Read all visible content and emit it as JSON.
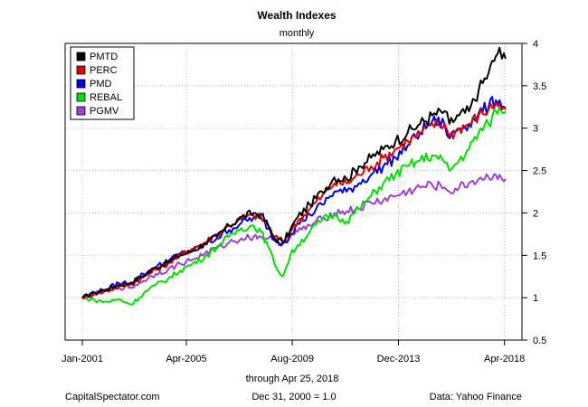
{
  "chart_data": {
    "type": "line",
    "title": "Wealth Indexes",
    "subtitle": "monthly",
    "xlabel": "through Apr 25, 2018",
    "x_range": [
      2001.0,
      2018.3
    ],
    "ylim": [
      0.5,
      4
    ],
    "y_ticks": [
      "0.5",
      "1",
      "1.5",
      "2",
      "2.5",
      "3",
      "3.5",
      "4"
    ],
    "x_ticks": [
      {
        "label": "Jan-2001",
        "x": 2001.0
      },
      {
        "label": "Apr-2005",
        "x": 2005.25
      },
      {
        "label": "Aug-2009",
        "x": 2009.58
      },
      {
        "label": "Dec-2013",
        "x": 2013.92
      },
      {
        "label": "Apr-2018",
        "x": 2018.25
      }
    ],
    "grid": true,
    "legend_position": "top-left",
    "series": [
      {
        "name": "PMTD",
        "color": "#000000",
        "points": [
          [
            2001.0,
            1.0
          ],
          [
            2001.5,
            1.06
          ],
          [
            2002.0,
            1.1
          ],
          [
            2002.5,
            1.15
          ],
          [
            2003.0,
            1.18
          ],
          [
            2003.5,
            1.26
          ],
          [
            2004.0,
            1.36
          ],
          [
            2004.5,
            1.42
          ],
          [
            2005.0,
            1.5
          ],
          [
            2005.5,
            1.55
          ],
          [
            2006.0,
            1.64
          ],
          [
            2006.5,
            1.72
          ],
          [
            2007.0,
            1.85
          ],
          [
            2007.5,
            1.95
          ],
          [
            2008.0,
            2.0
          ],
          [
            2008.3,
            1.98
          ],
          [
            2008.6,
            1.85
          ],
          [
            2008.85,
            1.7
          ],
          [
            2009.2,
            1.65
          ],
          [
            2009.5,
            1.8
          ],
          [
            2009.8,
            1.95
          ],
          [
            2010.3,
            2.1
          ],
          [
            2010.8,
            2.25
          ],
          [
            2011.3,
            2.42
          ],
          [
            2011.8,
            2.4
          ],
          [
            2012.3,
            2.55
          ],
          [
            2012.8,
            2.65
          ],
          [
            2013.3,
            2.75
          ],
          [
            2013.8,
            2.85
          ],
          [
            2014.3,
            2.95
          ],
          [
            2014.8,
            3.05
          ],
          [
            2015.3,
            3.15
          ],
          [
            2015.8,
            3.2
          ],
          [
            2016.0,
            3.05
          ],
          [
            2016.4,
            3.15
          ],
          [
            2016.8,
            3.2
          ],
          [
            2017.2,
            3.45
          ],
          [
            2017.6,
            3.65
          ],
          [
            2017.9,
            3.85
          ],
          [
            2018.05,
            3.95
          ],
          [
            2018.15,
            3.82
          ],
          [
            2018.3,
            3.82
          ]
        ]
      },
      {
        "name": "PERC",
        "color": "#e00000",
        "points": [
          [
            2001.0,
            1.0
          ],
          [
            2001.5,
            1.05
          ],
          [
            2002.0,
            1.08
          ],
          [
            2002.5,
            1.13
          ],
          [
            2003.0,
            1.16
          ],
          [
            2003.5,
            1.24
          ],
          [
            2004.0,
            1.33
          ],
          [
            2004.5,
            1.4
          ],
          [
            2005.0,
            1.5
          ],
          [
            2005.5,
            1.58
          ],
          [
            2006.0,
            1.65
          ],
          [
            2006.5,
            1.75
          ],
          [
            2007.0,
            1.85
          ],
          [
            2007.5,
            1.93
          ],
          [
            2008.0,
            1.97
          ],
          [
            2008.3,
            1.95
          ],
          [
            2008.6,
            1.85
          ],
          [
            2008.85,
            1.72
          ],
          [
            2009.2,
            1.66
          ],
          [
            2009.5,
            1.78
          ],
          [
            2009.8,
            1.9
          ],
          [
            2010.3,
            2.05
          ],
          [
            2010.8,
            2.2
          ],
          [
            2011.3,
            2.35
          ],
          [
            2011.8,
            2.35
          ],
          [
            2012.3,
            2.45
          ],
          [
            2012.8,
            2.55
          ],
          [
            2013.3,
            2.65
          ],
          [
            2013.8,
            2.75
          ],
          [
            2014.3,
            2.85
          ],
          [
            2014.8,
            2.93
          ],
          [
            2015.3,
            3.05
          ],
          [
            2015.8,
            3.05
          ],
          [
            2016.0,
            2.9
          ],
          [
            2016.4,
            3.0
          ],
          [
            2016.8,
            3.05
          ],
          [
            2017.2,
            3.15
          ],
          [
            2017.6,
            3.22
          ],
          [
            2017.9,
            3.3
          ],
          [
            2018.05,
            3.28
          ],
          [
            2018.15,
            3.22
          ],
          [
            2018.3,
            3.22
          ]
        ]
      },
      {
        "name": "PMD",
        "color": "#0000e0",
        "points": [
          [
            2001.0,
            1.0
          ],
          [
            2001.5,
            1.06
          ],
          [
            2002.0,
            1.1
          ],
          [
            2002.5,
            1.17
          ],
          [
            2003.0,
            1.18
          ],
          [
            2003.5,
            1.28
          ],
          [
            2004.0,
            1.36
          ],
          [
            2004.5,
            1.43
          ],
          [
            2005.0,
            1.52
          ],
          [
            2005.5,
            1.55
          ],
          [
            2006.0,
            1.63
          ],
          [
            2006.5,
            1.7
          ],
          [
            2007.0,
            1.8
          ],
          [
            2007.5,
            1.88
          ],
          [
            2008.0,
            1.95
          ],
          [
            2008.3,
            1.93
          ],
          [
            2008.6,
            1.82
          ],
          [
            2008.85,
            1.68
          ],
          [
            2009.2,
            1.64
          ],
          [
            2009.5,
            1.75
          ],
          [
            2009.8,
            1.87
          ],
          [
            2010.3,
            1.98
          ],
          [
            2010.8,
            2.1
          ],
          [
            2011.3,
            2.25
          ],
          [
            2011.8,
            2.25
          ],
          [
            2012.3,
            2.35
          ],
          [
            2012.8,
            2.45
          ],
          [
            2013.3,
            2.55
          ],
          [
            2013.8,
            2.65
          ],
          [
            2014.3,
            2.8
          ],
          [
            2014.8,
            2.95
          ],
          [
            2015.3,
            3.08
          ],
          [
            2015.8,
            3.05
          ],
          [
            2016.0,
            2.88
          ],
          [
            2016.4,
            3.0
          ],
          [
            2016.8,
            3.05
          ],
          [
            2017.2,
            3.18
          ],
          [
            2017.6,
            3.25
          ],
          [
            2017.9,
            3.33
          ],
          [
            2018.05,
            3.33
          ],
          [
            2018.15,
            3.25
          ],
          [
            2018.3,
            3.24
          ]
        ]
      },
      {
        "name": "REBAL",
        "color": "#00e000",
        "points": [
          [
            2001.0,
            1.0
          ],
          [
            2001.5,
            0.97
          ],
          [
            2002.0,
            0.95
          ],
          [
            2002.5,
            0.98
          ],
          [
            2003.0,
            0.92
          ],
          [
            2003.5,
            1.05
          ],
          [
            2004.0,
            1.15
          ],
          [
            2004.5,
            1.22
          ],
          [
            2005.0,
            1.32
          ],
          [
            2005.5,
            1.4
          ],
          [
            2006.0,
            1.48
          ],
          [
            2006.5,
            1.6
          ],
          [
            2007.0,
            1.72
          ],
          [
            2007.5,
            1.82
          ],
          [
            2008.0,
            1.85
          ],
          [
            2008.3,
            1.78
          ],
          [
            2008.6,
            1.6
          ],
          [
            2008.85,
            1.4
          ],
          [
            2009.2,
            1.25
          ],
          [
            2009.5,
            1.5
          ],
          [
            2009.8,
            1.62
          ],
          [
            2010.3,
            1.78
          ],
          [
            2010.8,
            1.92
          ],
          [
            2011.3,
            1.98
          ],
          [
            2011.8,
            1.9
          ],
          [
            2012.3,
            2.05
          ],
          [
            2012.8,
            2.2
          ],
          [
            2013.3,
            2.35
          ],
          [
            2013.8,
            2.45
          ],
          [
            2014.3,
            2.55
          ],
          [
            2014.8,
            2.62
          ],
          [
            2015.3,
            2.68
          ],
          [
            2015.8,
            2.6
          ],
          [
            2016.0,
            2.5
          ],
          [
            2016.4,
            2.62
          ],
          [
            2016.8,
            2.75
          ],
          [
            2017.2,
            2.95
          ],
          [
            2017.6,
            3.05
          ],
          [
            2017.9,
            3.2
          ],
          [
            2018.05,
            3.25
          ],
          [
            2018.15,
            3.18
          ],
          [
            2018.3,
            3.2
          ]
        ]
      },
      {
        "name": "PGMV",
        "color": "#a040d0",
        "points": [
          [
            2001.0,
            1.0
          ],
          [
            2001.5,
            1.04
          ],
          [
            2002.0,
            1.08
          ],
          [
            2002.5,
            1.12
          ],
          [
            2003.0,
            1.12
          ],
          [
            2003.5,
            1.2
          ],
          [
            2004.0,
            1.28
          ],
          [
            2004.5,
            1.33
          ],
          [
            2005.0,
            1.4
          ],
          [
            2005.5,
            1.45
          ],
          [
            2006.0,
            1.52
          ],
          [
            2006.5,
            1.58
          ],
          [
            2007.0,
            1.65
          ],
          [
            2007.5,
            1.7
          ],
          [
            2008.0,
            1.72
          ],
          [
            2008.3,
            1.72
          ],
          [
            2008.6,
            1.7
          ],
          [
            2008.85,
            1.67
          ],
          [
            2009.2,
            1.65
          ],
          [
            2009.5,
            1.72
          ],
          [
            2009.8,
            1.78
          ],
          [
            2010.3,
            1.85
          ],
          [
            2010.8,
            1.93
          ],
          [
            2011.3,
            2.0
          ],
          [
            2011.8,
            2.02
          ],
          [
            2012.3,
            2.05
          ],
          [
            2012.8,
            2.12
          ],
          [
            2013.3,
            2.15
          ],
          [
            2013.8,
            2.2
          ],
          [
            2014.3,
            2.25
          ],
          [
            2014.8,
            2.3
          ],
          [
            2015.3,
            2.33
          ],
          [
            2015.8,
            2.3
          ],
          [
            2016.0,
            2.25
          ],
          [
            2016.4,
            2.3
          ],
          [
            2016.8,
            2.35
          ],
          [
            2017.2,
            2.4
          ],
          [
            2017.6,
            2.42
          ],
          [
            2017.9,
            2.45
          ],
          [
            2018.05,
            2.45
          ],
          [
            2018.15,
            2.4
          ],
          [
            2018.3,
            2.4
          ]
        ]
      }
    ]
  },
  "footer": {
    "left": "CapitalSpectator.com",
    "center": "Dec 31, 2000 = 1.0",
    "right": "Data: Yahoo Finance"
  }
}
